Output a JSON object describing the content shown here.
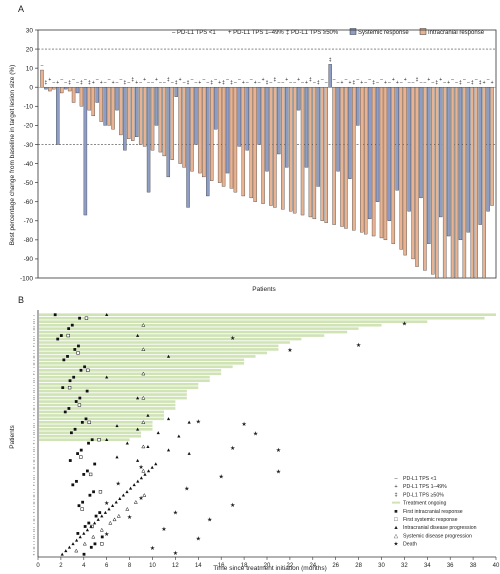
{
  "chart_data": [
    {
      "type": "bar",
      "panel_label": "A",
      "ylabel": "Best percentage change from baseline in target lesion size (%)",
      "xlabel": "Patients",
      "ylim": [
        -100,
        30
      ],
      "yticks": [
        30,
        20,
        10,
        0,
        -10,
        -20,
        -30,
        -40,
        -50,
        -60,
        -70,
        -80,
        -90,
        -100
      ],
      "reference_lines": [
        20,
        -30
      ],
      "legend": {
        "placement": "top-right",
        "entries": [
          {
            "symbol": "–",
            "label": "PD-L1 TPS <1"
          },
          {
            "symbol": "+",
            "label": "PD-L1 TPS 1–49%"
          },
          {
            "symbol": "‡",
            "label": "PD-L1 TPS ≥50%"
          },
          {
            "swatch": "#8e9dc6",
            "label": "Systemic response"
          },
          {
            "swatch": "#e7b393",
            "label": "Intracranial response"
          }
        ]
      },
      "colors": {
        "systemic": "#8e9dc6",
        "intracranial": "#e7b393",
        "edge": "#333333"
      },
      "series": [
        {
          "name": "Systemic response",
          "values": [
            -1,
            -30,
            -1,
            -3,
            -67,
            -8,
            -20,
            -12,
            -33,
            -26,
            -55,
            -20,
            -47,
            -5,
            -63,
            -30,
            -57,
            -22,
            -45,
            -31,
            -33,
            -30,
            -44,
            -35,
            -42,
            -12,
            -42,
            -52,
            12,
            -44,
            -48,
            -20,
            -69,
            -60,
            -70,
            -54,
            -65,
            -58,
            -82,
            -68,
            -78,
            -80,
            -76,
            -72,
            -65
          ]
        },
        {
          "name": "Intracranial response",
          "values": [
            9,
            -2,
            -1,
            -3,
            -2,
            -8,
            -10,
            -12,
            -15,
            -18,
            -20,
            -22,
            -25,
            -27,
            -28,
            -30,
            -31,
            -33,
            -34,
            -36,
            -38,
            -40,
            -42,
            -44,
            -45,
            -47,
            -49,
            -50,
            -52,
            -53,
            -55,
            -57,
            -58,
            -60,
            -61,
            -62,
            -63,
            -64,
            -65,
            -66,
            -67,
            -68,
            -69,
            -70,
            -71,
            -72,
            -73,
            -74,
            -75,
            -76,
            -77,
            -78,
            -79,
            -80,
            -82,
            -85,
            -88,
            -90,
            -94,
            -96,
            -98,
            -100,
            -100,
            -100,
            -100,
            -100,
            -100,
            -100,
            -100,
            -62
          ]
        }
      ]
    },
    {
      "type": "swimmer",
      "panel_label": "B",
      "ylabel": "Patients",
      "xlabel": "Time since treatment initiation (months)",
      "xlim": [
        0,
        40
      ],
      "xticks": [
        0,
        2,
        4,
        6,
        8,
        10,
        12,
        14,
        16,
        18,
        20,
        22,
        24,
        26,
        28,
        30,
        32,
        34,
        36,
        38,
        40
      ],
      "legend": {
        "placement": "bottom-right",
        "entries": [
          {
            "symbol": "–",
            "label": "PD-L1 TPS <1"
          },
          {
            "symbol": "+",
            "label": "PD-L1 TPS 1–49%"
          },
          {
            "symbol": "‡",
            "label": "PD-L1 TPS ≥50%"
          },
          {
            "symbol": "line",
            "label": "Treatment ongoing"
          },
          {
            "symbol": "■",
            "label": "First intracranial response"
          },
          {
            "symbol": "□",
            "label": "First systemic response"
          },
          {
            "symbol": "▲",
            "label": "Intracranial disease progression"
          },
          {
            "symbol": "△",
            "label": "Systemic disease progression"
          },
          {
            "symbol": "★",
            "label": "Death"
          }
        ]
      },
      "colors": {
        "ongoing": "#cfe3b5",
        "death": "#e03127",
        "marker": "#111111"
      },
      "ongoing_bar_ends": [
        40,
        39,
        34,
        30,
        28,
        27,
        25,
        23,
        22,
        21,
        21,
        20,
        19,
        18,
        18,
        17,
        16,
        16,
        15,
        15,
        14,
        14,
        13,
        13,
        13,
        12,
        12,
        12,
        11,
        11,
        11,
        10,
        10,
        10,
        9,
        9,
        8
      ],
      "deaths": [
        [
          32,
          0.04
        ],
        [
          17,
          0.1
        ],
        [
          28,
          0.13
        ],
        [
          22,
          0.15
        ],
        [
          14,
          0.45
        ],
        [
          18,
          0.46
        ],
        [
          19,
          0.5
        ],
        [
          17,
          0.56
        ],
        [
          21,
          0.57
        ],
        [
          9,
          0.64
        ],
        [
          21,
          0.66
        ],
        [
          16,
          0.68
        ],
        [
          7,
          0.71
        ],
        [
          13,
          0.73
        ],
        [
          9,
          0.77
        ],
        [
          6,
          0.79
        ],
        [
          17,
          0.8
        ],
        [
          12,
          0.83
        ],
        [
          8,
          0.85
        ],
        [
          15,
          0.86
        ],
        [
          11,
          0.9
        ],
        [
          6,
          0.92
        ],
        [
          14,
          0.94
        ],
        [
          10,
          0.98
        ],
        [
          12,
          1.0
        ]
      ]
    }
  ]
}
